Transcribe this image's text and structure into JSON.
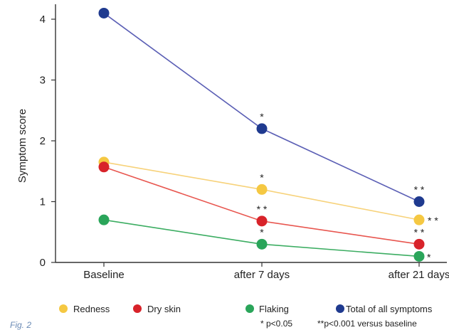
{
  "chart_data": {
    "type": "line",
    "title": "",
    "xlabel": "",
    "ylabel": "Symptom score",
    "categories": [
      "Baseline",
      "after 7 days",
      "after 21 days"
    ],
    "ylim": [
      0,
      4
    ],
    "yticks": [
      0,
      1,
      2,
      3,
      4
    ],
    "grid": false,
    "legend_position": "bottom",
    "series": [
      {
        "name": "Redness",
        "color": "#f5c842",
        "line_color": "#f7d27a",
        "values": [
          1.65,
          1.2,
          0.7
        ],
        "markers": [
          "",
          "*",
          "**"
        ]
      },
      {
        "name": "Dry skin",
        "color": "#d8232a",
        "line_color": "#e8564f",
        "values": [
          1.57,
          0.68,
          0.3
        ],
        "markers": [
          "",
          "**",
          "**"
        ]
      },
      {
        "name": "Flaking",
        "color": "#2aa55a",
        "line_color": "#3cad62",
        "values": [
          0.7,
          0.3,
          0.1
        ],
        "markers": [
          "",
          "*",
          "*"
        ]
      },
      {
        "name": "Total of all symptoms",
        "color": "#1f3a8f",
        "line_color": "#5b5fb5",
        "values": [
          4.1,
          2.2,
          1.0
        ],
        "markers": [
          "",
          "*",
          "**"
        ]
      }
    ],
    "notes": [
      "* p<0.05",
      "**p<0.001 versus baseline"
    ]
  },
  "caption": "Fig. 2"
}
